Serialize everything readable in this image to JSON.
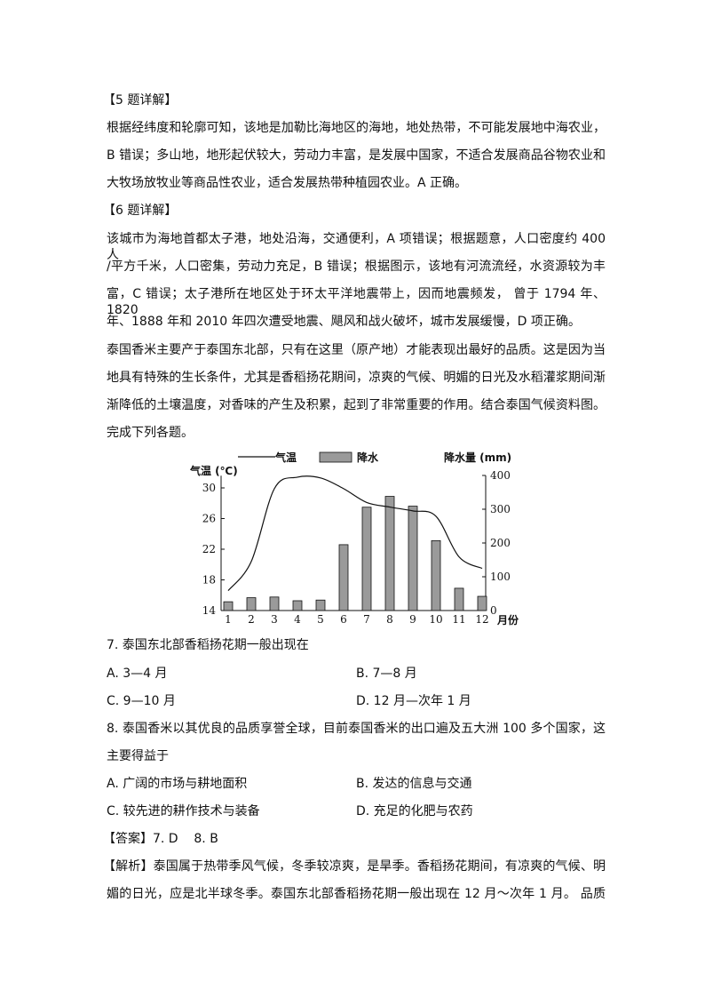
{
  "section5": {
    "heading": "【5 题详解】",
    "lines": [
      "根据经纬度和轮廓可知，该地是加勒比海地区的海地，地处热带，不可能发展地中海农业，",
      "B 错误；多山地，地形起伏较大，劳动力丰富，是发展中国家，不适合发展商品谷物农业和",
      "大牧场放牧业等商品性农业，适合发展热带种植园农业。A 正确。"
    ]
  },
  "section6": {
    "heading": "【6 题详解】",
    "lines": [
      "该城市为海地首都太子港，地处沿海，交通便利，A 项错误；根据题意，人口密度约 400 人",
      "/平方千米，人口密集，劳动力充足，B 错误；根据图示，该地有河流流经，水资源较为丰",
      "富，C 错误；太子港所在地区处于环太平洋地震带上，因而地震频发， 曾于 1794 年、1820",
      "年、1888 年和 2010 年四次遭受地震、飓风和战火破坏，城市发展缓慢，D 项正确。"
    ]
  },
  "intro": {
    "lines": [
      "泰国香米主要产于泰国东北部，只有在这里（原产地）才能表现出最好的品质。这是因为当",
      "地具有特殊的生长条件，尤其是香稻扬花期间，凉爽的气候、明媚的日光及水稻灌浆期间渐",
      "渐降低的土壤温度，对香味的产生及积累，起到了非常重要的作用。结合泰国气候资料图。",
      "完成下列各题。"
    ]
  },
  "chart_data": {
    "type": "bar+line",
    "legend": {
      "line": "气温",
      "bar": "降水",
      "placement": "top"
    },
    "ylabel_left": "气温 (℃)",
    "ylabel_right": "降水量 (mm)",
    "xlabel": "月份",
    "categories": [
      "1",
      "2",
      "3",
      "4",
      "5",
      "6",
      "7",
      "8",
      "9",
      "10",
      "11",
      "12"
    ],
    "temperature": [
      16.6,
      20.4,
      29.9,
      31.4,
      31.3,
      29.9,
      28.1,
      27.5,
      27.0,
      26.3,
      21.0,
      19.5
    ],
    "precipitation": [
      26,
      38,
      40,
      29,
      31,
      195,
      306,
      338,
      309,
      207,
      66,
      42
    ],
    "ylim_left": [
      14,
      31.6
    ],
    "yticks_left": [
      14,
      18,
      22,
      26,
      30
    ],
    "ylim_right": [
      0,
      400
    ],
    "yticks_right": [
      0,
      100,
      200,
      300,
      400
    ],
    "bar_color": "#9a9a9a",
    "grid": false
  },
  "q7": {
    "stem": "7. 泰国东北部香稻扬花期一般出现在",
    "options": [
      "A. 3—4 月",
      "B. 7—8 月",
      "C. 9—10 月",
      "D. 12 月—次年 1 月"
    ]
  },
  "q8": {
    "stem_lines": [
      "8. 泰国香米以其优良的品质享誉全球，目前泰国香米的出口遍及五大洲 100 多个国家，这",
      "主要得益于"
    ],
    "options": [
      "A. 广阔的市场与耕地面积",
      "B. 发达的信息与交通",
      "C. 较先进的耕作技术与装备",
      "D. 充足的化肥与农药"
    ]
  },
  "answer": "【答案】7. D    8. B",
  "analysis": {
    "lines": [
      "【解析】泰国属于热带季风气候，冬季较凉爽，是旱季。香稻扬花期间，有凉爽的气候、明",
      "媚的日光，应是北半球冬季。泰国东北部香稻扬花期一般出现在 12 月～次年 1 月。 品质"
    ]
  }
}
